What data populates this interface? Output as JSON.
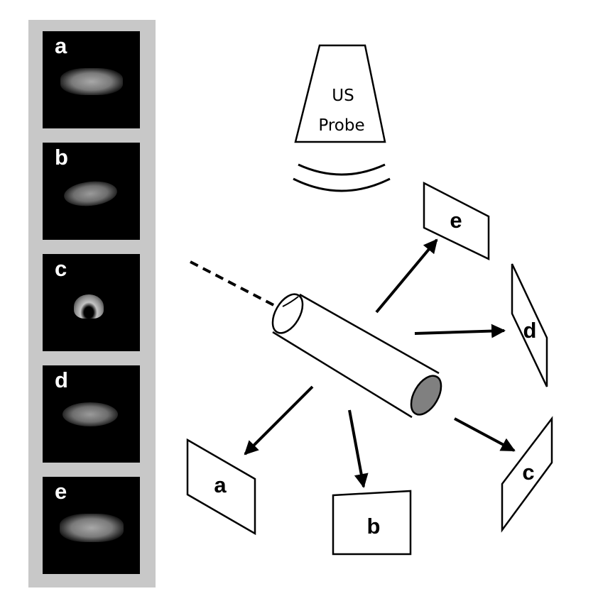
{
  "probe": {
    "line1": "US",
    "line2": "Probe"
  },
  "panels": [
    {
      "label": "a"
    },
    {
      "label": "b"
    },
    {
      "label": "c"
    },
    {
      "label": "d"
    },
    {
      "label": "e"
    }
  ],
  "planes": {
    "a": "a",
    "b": "b",
    "c": "c",
    "d": "d",
    "e": "e"
  },
  "colors": {
    "strip_bg": "#c8c8c8",
    "panel_bg": "#000000",
    "vessel_end": "#808080"
  }
}
